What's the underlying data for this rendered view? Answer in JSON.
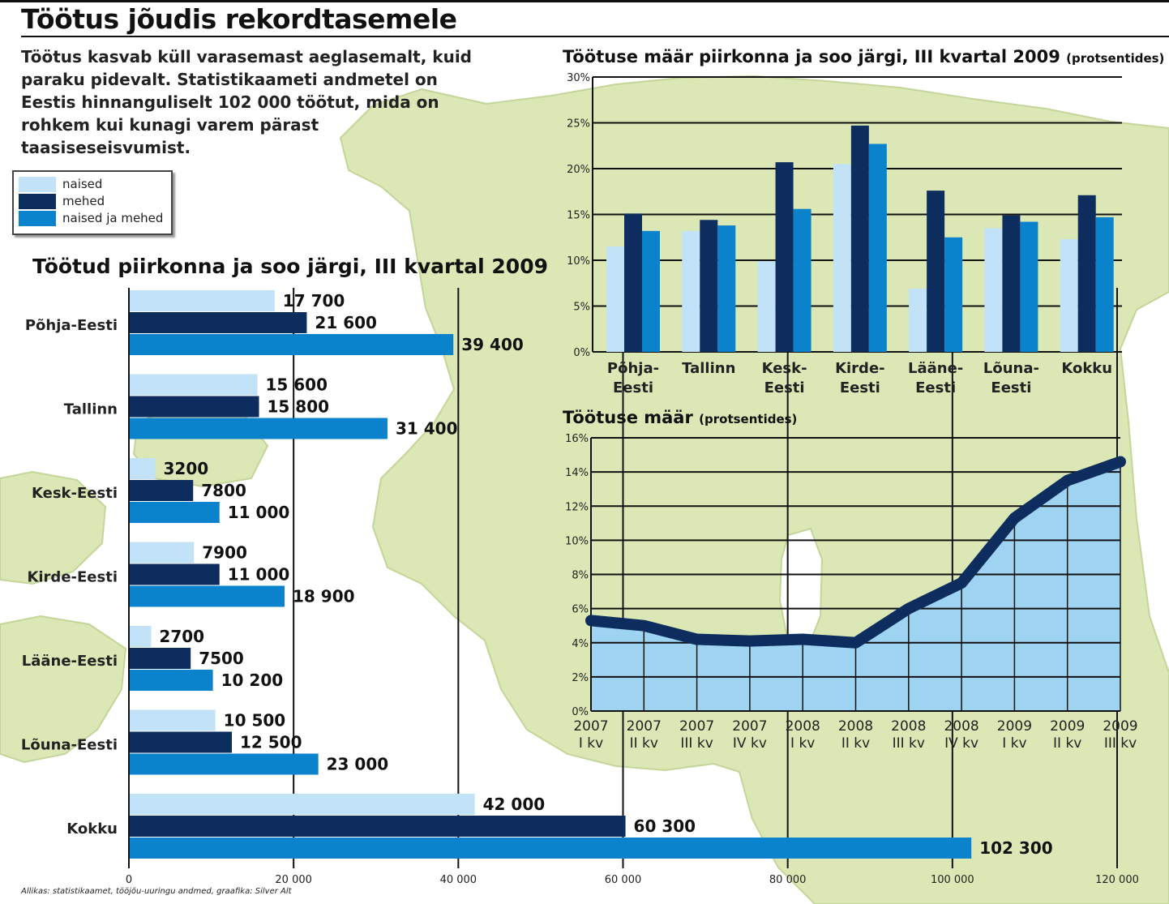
{
  "headline": "Töötus jõudis rekordtasemele",
  "intro_text": "Töötus kasvab küll varasemast aeglasemalt, kuid paraku pidevalt. Statistikaameti andmetel on Eestis hinnanguliselt 102 000 töötut, mida on rohkem kui kunagi varem pärast taasiseseisvumist.",
  "legend": [
    {
      "label": "naised",
      "color": "#c2e2f7"
    },
    {
      "label": "mehed",
      "color": "#0d2d5e"
    },
    {
      "label": "naised ja mehed",
      "color": "#0b82cc"
    }
  ],
  "source": "Allikas: statistikaamet, tööjõu-uuringu andmed, graafika: Silver Alt",
  "colors": {
    "map_land": "#dbe8b5",
    "map_edge": "#c4d59a",
    "area_fill": "#9fd3f2",
    "line": "#0d2d5e",
    "grid": "#111111"
  },
  "chart_data": [
    {
      "type": "bar",
      "orientation": "horizontal",
      "title": "Töötud piirkonna ja soo järgi, III kvartal 2009",
      "categories": [
        "Põhja-Eesti",
        "Tallinn",
        "Kesk-Eesti",
        "Kirde-Eesti",
        "Lääne-Eesti",
        "Lõuna-Eesti",
        "Kokku"
      ],
      "series": [
        {
          "name": "naised",
          "values": [
            17700,
            15600,
            3200,
            7900,
            2700,
            10500,
            42000
          ]
        },
        {
          "name": "mehed",
          "values": [
            21600,
            15800,
            7800,
            11000,
            7500,
            12500,
            60300
          ]
        },
        {
          "name": "naised ja mehed",
          "values": [
            39400,
            31400,
            11000,
            18900,
            10200,
            23000,
            102300
          ]
        }
      ],
      "value_labels": [
        [
          "17 700",
          "21 600",
          "39 400"
        ],
        [
          "15 600",
          "15 800",
          "31 400"
        ],
        [
          "3200",
          "7800",
          "11 000"
        ],
        [
          "7900",
          "11 000",
          "18 900"
        ],
        [
          "2700",
          "7500",
          "10 200"
        ],
        [
          "10 500",
          "12 500",
          "23 000"
        ],
        [
          "42 000",
          "60 300",
          "102 300"
        ]
      ],
      "xlim": [
        0,
        120000
      ],
      "xticks": [
        0,
        20000,
        40000,
        60000,
        80000,
        100000,
        120000
      ],
      "xtick_labels": [
        "0",
        "20 000",
        "40 000",
        "60 000",
        "80 000",
        "100 000",
        "120 000"
      ]
    },
    {
      "type": "bar",
      "title": "Töötuse määr piirkonna ja soo järgi, III kvartal 2009",
      "title_suffix": "(protsentides)",
      "categories": [
        [
          "Põhja-",
          "Eesti"
        ],
        [
          "Tallinn"
        ],
        [
          "Kesk-",
          "Eesti"
        ],
        [
          "Kirde-",
          "Eesti"
        ],
        [
          "Lääne-",
          "Eesti"
        ],
        [
          "Lõuna-",
          "Eesti"
        ],
        [
          "Kokku"
        ]
      ],
      "series": [
        {
          "name": "naised",
          "values": [
            11.5,
            13.2,
            9.9,
            20.5,
            6.9,
            13.5,
            12.3
          ]
        },
        {
          "name": "mehed",
          "values": [
            15.1,
            14.4,
            20.7,
            24.7,
            17.6,
            14.9,
            17.1
          ]
        },
        {
          "name": "naised ja mehed",
          "values": [
            13.2,
            13.8,
            15.6,
            22.7,
            12.5,
            14.2,
            14.7
          ]
        }
      ],
      "ylim": [
        0,
        30
      ],
      "yticks": [
        0,
        5,
        10,
        15,
        20,
        25,
        30
      ],
      "ytick_labels": [
        "0%",
        "5%",
        "10%",
        "15%",
        "20%",
        "25%",
        "30%"
      ]
    },
    {
      "type": "area",
      "title": "Töötuse määr",
      "title_suffix": "(protsentides)",
      "x": [
        [
          "2007",
          "I kv"
        ],
        [
          "2007",
          "II kv"
        ],
        [
          "2007",
          "III kv"
        ],
        [
          "2007",
          "IV kv"
        ],
        [
          "2008",
          "I kv"
        ],
        [
          "2008",
          "II kv"
        ],
        [
          "2008",
          "III kv"
        ],
        [
          "2008",
          "IV kv"
        ],
        [
          "2009",
          "I kv"
        ],
        [
          "2009",
          "II kv"
        ],
        [
          "2009",
          "III kv"
        ]
      ],
      "values": [
        5.3,
        5.0,
        4.2,
        4.1,
        4.2,
        4.0,
        6.0,
        7.5,
        11.3,
        13.5,
        14.6
      ],
      "ylim": [
        0,
        16
      ],
      "yticks": [
        0,
        2,
        4,
        6,
        8,
        10,
        12,
        14,
        16
      ],
      "ytick_labels": [
        "0%",
        "2%",
        "4%",
        "6%",
        "8%",
        "10%",
        "12%",
        "14%",
        "16%"
      ]
    }
  ]
}
